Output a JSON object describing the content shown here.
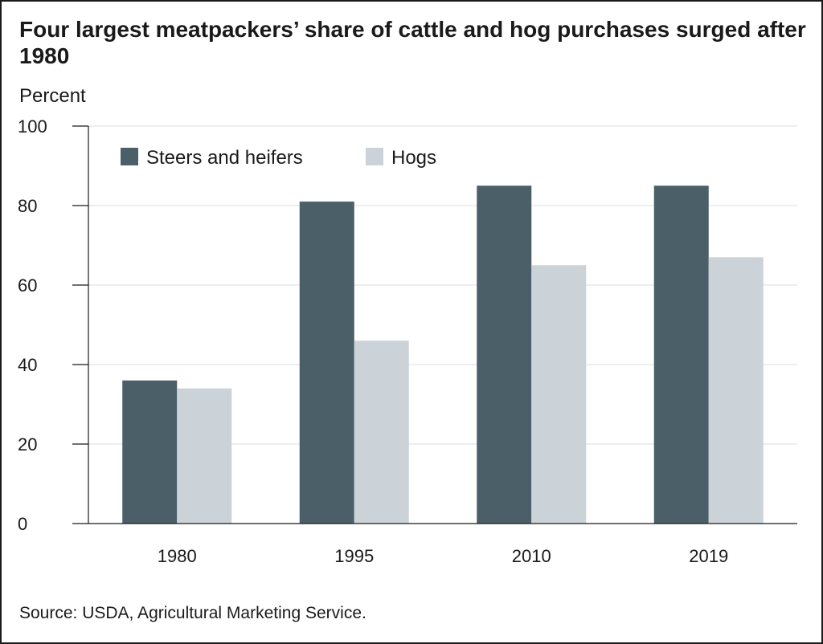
{
  "header": {
    "title": "Four largest meatpackers’ share of cattle and hog purchases surged after 1980",
    "unit_label": "Percent"
  },
  "footer": {
    "source": "Source: USDA, Agricultural Marketing Service."
  },
  "colors": {
    "steers": "#4a5f68",
    "hogs": "#ccd3d8",
    "grid": "#dddddd",
    "axis": "#1a1a1a"
  },
  "chart_data": {
    "type": "bar",
    "title": "Four largest meatpackers’ share of cattle and hog purchases surged after 1980",
    "ylabel": "Percent",
    "xlabel": "",
    "categories": [
      "1980",
      "1995",
      "2010",
      "2019"
    ],
    "series": [
      {
        "name": "Steers and heifers",
        "values": [
          36,
          81,
          85,
          85
        ]
      },
      {
        "name": "Hogs",
        "values": [
          34,
          46,
          65,
          67
        ]
      }
    ],
    "ylim": [
      0,
      100
    ],
    "yticks": [
      0,
      20,
      40,
      60,
      80,
      100
    ],
    "grid": true,
    "legend": "top-left"
  }
}
